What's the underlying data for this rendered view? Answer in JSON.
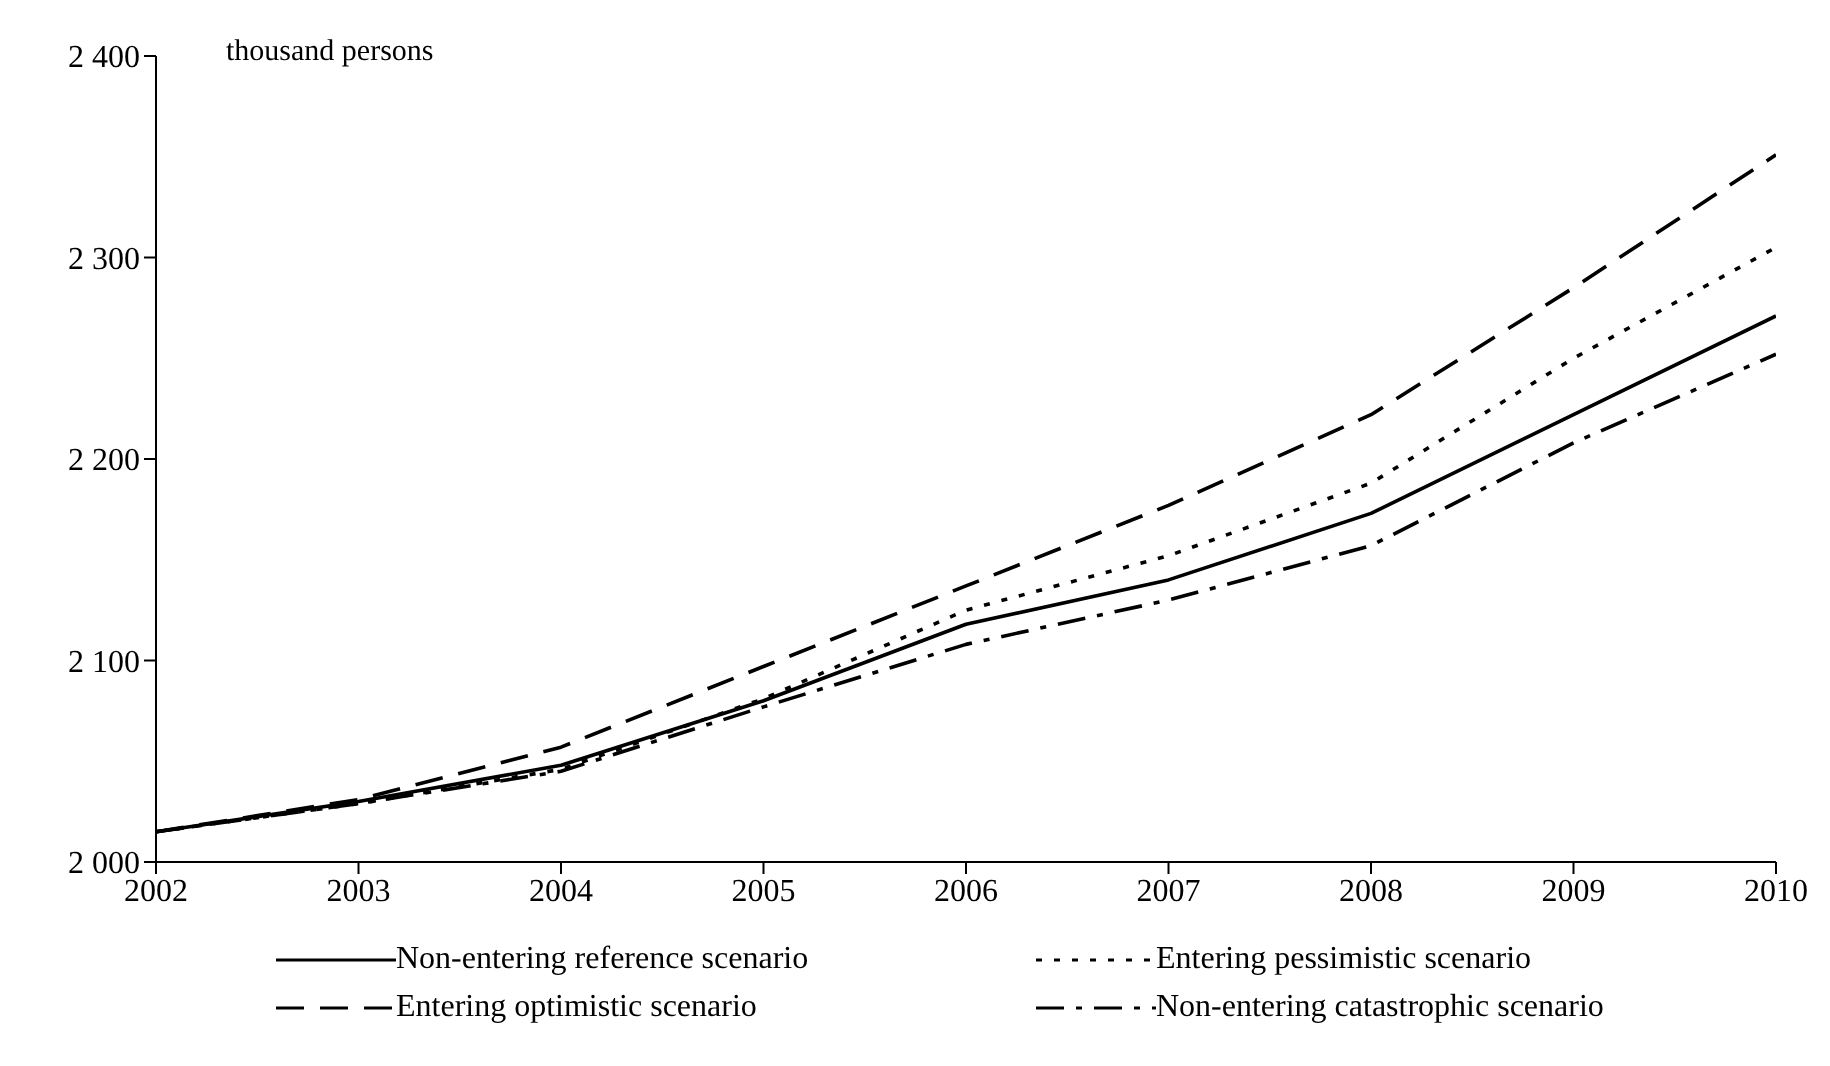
{
  "chart_data": {
    "type": "line",
    "ylabel": "thousand persons",
    "x": [
      2002,
      2003,
      2004,
      2005,
      2006,
      2007,
      2008,
      2009,
      2010
    ],
    "xlim": [
      2002,
      2010
    ],
    "xticks": [
      2002,
      2003,
      2004,
      2005,
      2006,
      2007,
      2008,
      2009,
      2010
    ],
    "ylim": [
      2000,
      2400
    ],
    "yticks": [
      {
        "value": 2000,
        "label": "2 000"
      },
      {
        "value": 2100,
        "label": "2 100"
      },
      {
        "value": 2200,
        "label": "2 200"
      },
      {
        "value": 2300,
        "label": "2 300"
      },
      {
        "value": 2400,
        "label": "2 400"
      }
    ],
    "grid": false,
    "legend": "bottom",
    "marker": "none",
    "series": [
      {
        "name": "Non-entering reference scenario",
        "color": "#000000",
        "line_style": "solid",
        "values": [
          2015,
          2030,
          2048,
          2080,
          2118,
          2140,
          2173,
          2222,
          2271
        ]
      },
      {
        "name": "Entering pessimistic scenario",
        "color": "#000000",
        "line_style": "dotted",
        "values": [
          2015,
          2029,
          2046,
          2081,
          2125,
          2152,
          2188,
          2250,
          2305
        ]
      },
      {
        "name": "Entering optimistic scenario",
        "color": "#000000",
        "line_style": "dashed",
        "values": [
          2015,
          2031,
          2057,
          2097,
          2137,
          2177,
          2222,
          2285,
          2351
        ]
      },
      {
        "name": "Non-entering catastrophic scenario",
        "color": "#000000",
        "line_style": "dashdot",
        "values": [
          2015,
          2029,
          2045,
          2077,
          2108,
          2130,
          2157,
          2208,
          2252
        ]
      }
    ]
  }
}
